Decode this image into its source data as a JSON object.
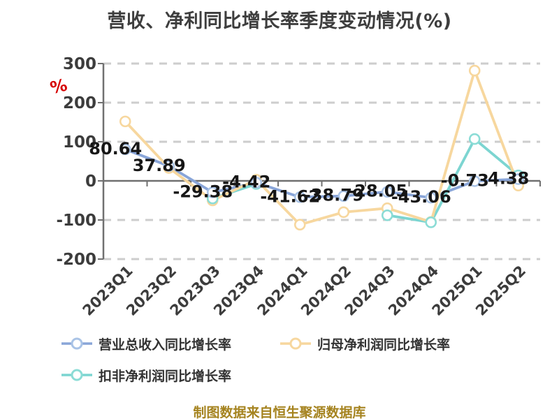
{
  "title": "营收、净利同比增长率季度变动情况(%)",
  "y_axis_icon": {
    "glyph": "%",
    "color": "#d60000"
  },
  "footer": {
    "text": "制图数据来自恒生聚源数据库",
    "color": "#a5831f"
  },
  "chart_data": {
    "type": "line",
    "title": "营收、净利同比增长率季度变动情况(%)",
    "categories": [
      "2023Q1",
      "2023Q2",
      "2023Q3",
      "2023Q4",
      "2024Q1",
      "2024Q2",
      "2024Q3",
      "2024Q4",
      "2025Q1",
      "2025Q2"
    ],
    "yticks": [
      300,
      200,
      100,
      0,
      -100,
      -200
    ],
    "ylim": [
      -200,
      300
    ],
    "grid": "horizontal-dashed",
    "legend_position": "bottom-left",
    "series": [
      {
        "name": "营业总收入同比增长率",
        "color": "#89a5d8",
        "marker_stroke": "#a9c3e6",
        "values": [
          80.64,
          37.89,
          -29.38,
          -4.42,
          -41.62,
          -38.79,
          -28.05,
          -43.06,
          -0.73,
          4.38
        ],
        "labels": [
          "80.64",
          "37.89",
          "-29.38",
          "-4.42",
          "-41.62",
          "-38.79",
          "-28.05",
          "-43.06",
          "-0.73",
          "4.38"
        ]
      },
      {
        "name": "归母净利润同比增长率",
        "color": "#f7d79e",
        "marker_stroke": "#f7d79e",
        "values": [
          152,
          33,
          -50,
          3,
          -112,
          -80,
          -70,
          -105,
          282,
          -12
        ],
        "labels": []
      },
      {
        "name": "扣非净利润同比增长率",
        "color": "#7cd5d1",
        "marker_stroke": "#8bdcd6",
        "values": [
          null,
          null,
          -45,
          -8,
          null,
          null,
          -88,
          -106,
          107,
          14
        ],
        "labels": []
      }
    ]
  }
}
